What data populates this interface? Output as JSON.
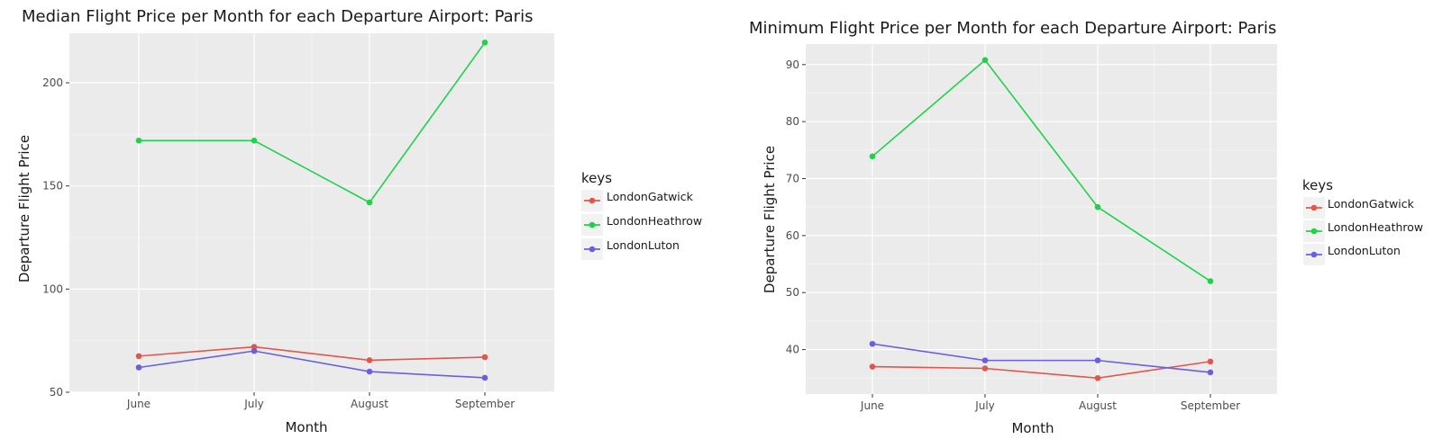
{
  "colors": {
    "panel_bg": "#EBEBEB",
    "grid_major": "#FFFFFF",
    "grid_minor": "#F5F5F5",
    "legend_key_bg": "#F2F2F2",
    "series": [
      "#E4564C",
      "#1ED24A",
      "#6A5FE0"
    ]
  },
  "chart_data": [
    {
      "type": "line",
      "title": "Median Flight Price per Month for each Departure Airport: Paris",
      "xlabel": "Month",
      "ylabel": "Departure Flight Price",
      "categories": [
        "June",
        "July",
        "August",
        "September"
      ],
      "ylim": [
        50,
        224
      ],
      "yticks": [
        50,
        100,
        150,
        200
      ],
      "grid": true,
      "legend": {
        "title": "keys",
        "placement": "right"
      },
      "series": [
        {
          "name": "LondonGatwick",
          "values": [
            67.5,
            72.0,
            65.5,
            67.0
          ]
        },
        {
          "name": "LondonHeathrow",
          "values": [
            172.0,
            172.0,
            142.0,
            219.5
          ]
        },
        {
          "name": "LondonLuton",
          "values": [
            62.0,
            70.0,
            60.0,
            57.0
          ]
        }
      ]
    },
    {
      "type": "line",
      "title": "Minimum Flight Price per Month for each Departure Airport: Paris",
      "xlabel": "Month",
      "ylabel": "Departure Flight Price",
      "categories": [
        "June",
        "July",
        "August",
        "September"
      ],
      "ylim": [
        32.2,
        93.6
      ],
      "yticks": [
        40,
        50,
        60,
        70,
        80,
        90
      ],
      "grid": true,
      "legend": {
        "title": "keys",
        "placement": "right"
      },
      "series": [
        {
          "name": "LondonGatwick",
          "values": [
            37.0,
            36.7,
            35.0,
            37.9
          ]
        },
        {
          "name": "LondonHeathrow",
          "values": [
            73.9,
            90.8,
            65.0,
            52.0
          ]
        },
        {
          "name": "LondonLuton",
          "values": [
            41.0,
            38.1,
            38.1,
            36.0
          ]
        }
      ]
    }
  ]
}
